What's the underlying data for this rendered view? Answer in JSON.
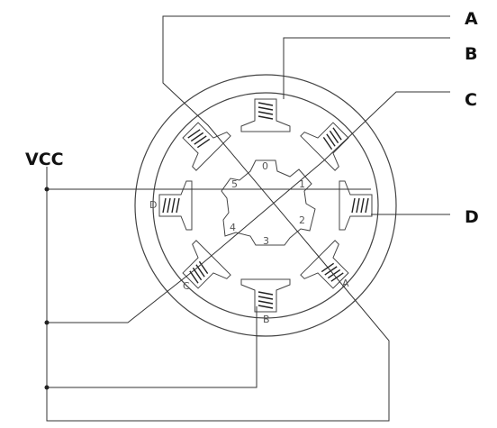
{
  "labels": {
    "vcc": "VCC",
    "term_a": "A",
    "term_b": "B",
    "term_c": "C",
    "term_d": "D",
    "stator_a": "A",
    "stator_b": "B",
    "stator_c": "C",
    "stator_d": "D",
    "rotor_0": "0",
    "rotor_1": "1",
    "rotor_2": "2",
    "rotor_3": "3",
    "rotor_4": "4",
    "rotor_5": "5"
  }
}
